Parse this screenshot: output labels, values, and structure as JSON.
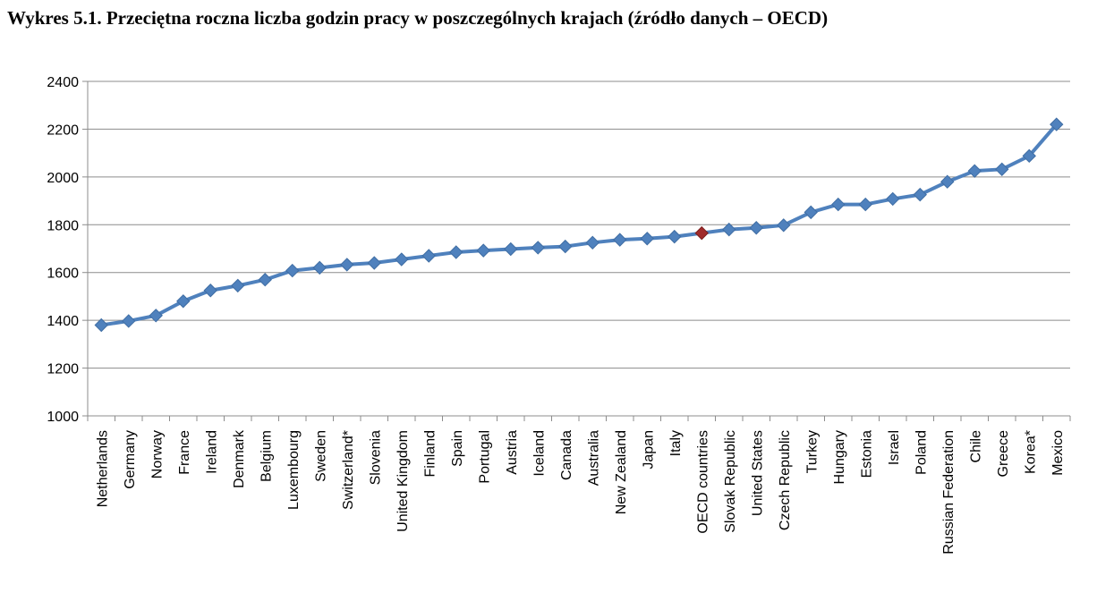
{
  "title": "Wykres 5.1. Przeciętna roczna liczba godzin pracy w poszczególnych krajach (źródło danych – OECD)",
  "chart_data": {
    "type": "line",
    "categories": [
      "Netherlands",
      "Germany",
      "Norway",
      "France",
      "Ireland",
      "Denmark",
      "Belgium",
      "Luxembourg",
      "Sweden",
      "Switzerland*",
      "Slovenia",
      "United Kingdom",
      "Finland",
      "Spain",
      "Portugal",
      "Austria",
      "Iceland",
      "Canada",
      "Australia",
      "New Zealand",
      "Japan",
      "Italy",
      "OECD countries",
      "Slovak Republic",
      "United States",
      "Czech Republic",
      "Turkey",
      "Hungary",
      "Estonia",
      "Israel",
      "Poland",
      "Russian Federation",
      "Chile",
      "Greece",
      "Korea*",
      "Mexico"
    ],
    "series": [
      {
        "values": [
          1380,
          1397,
          1420,
          1480,
          1525,
          1545,
          1570,
          1608,
          1620,
          1633,
          1640,
          1655,
          1670,
          1685,
          1692,
          1698,
          1704,
          1709,
          1725,
          1737,
          1742,
          1750,
          1765,
          1780,
          1787,
          1798,
          1852,
          1885,
          1885,
          1908,
          1926,
          1980,
          2025,
          2032,
          2088,
          2220
        ],
        "color": "#4F81BD",
        "highlight_index": 22,
        "highlight_color": "#A02B2B"
      }
    ],
    "ylim": [
      1000,
      2400
    ],
    "yticks": [
      1000,
      1200,
      1400,
      1600,
      1800,
      2000,
      2200,
      2400
    ],
    "grid": true,
    "legend": "none",
    "xlabel": "",
    "ylabel": ""
  }
}
